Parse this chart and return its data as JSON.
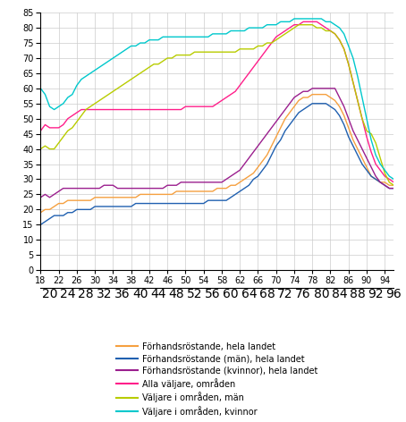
{
  "line_colors": [
    "#f5a040",
    "#2060b0",
    "#9b1f8e",
    "#ff1f8a",
    "#b8cc00",
    "#00c8cc"
  ],
  "line_labels": [
    "FörhandsRöstande, hela landet",
    "FörhandsRöstande (män), hela landet",
    "FörhandsRöstande (kvinnor), hela landet",
    "Alla väljare, områden",
    "Väljare i områden, män",
    "Väljare i områden, kvinnor"
  ],
  "ages": [
    18,
    19,
    20,
    21,
    22,
    23,
    24,
    25,
    26,
    27,
    28,
    29,
    30,
    31,
    32,
    33,
    34,
    35,
    36,
    37,
    38,
    39,
    40,
    41,
    42,
    43,
    44,
    45,
    46,
    47,
    48,
    49,
    50,
    51,
    52,
    53,
    54,
    55,
    56,
    57,
    58,
    59,
    60,
    61,
    62,
    63,
    64,
    65,
    66,
    67,
    68,
    69,
    70,
    71,
    72,
    73,
    74,
    75,
    76,
    77,
    78,
    79,
    80,
    81,
    82,
    83,
    84,
    85,
    86,
    87,
    88,
    89,
    90,
    91,
    92,
    93,
    94,
    95,
    96
  ],
  "forhand_hela": [
    19,
    20,
    20,
    21,
    22,
    22,
    23,
    23,
    23,
    23,
    23,
    23,
    24,
    24,
    24,
    24,
    24,
    24,
    24,
    24,
    24,
    24,
    25,
    25,
    25,
    25,
    25,
    25,
    25,
    25,
    26,
    26,
    26,
    26,
    26,
    26,
    26,
    26,
    26,
    27,
    27,
    27,
    28,
    28,
    29,
    30,
    31,
    32,
    34,
    36,
    38,
    41,
    44,
    47,
    50,
    52,
    54,
    56,
    57,
    57,
    58,
    58,
    58,
    58,
    57,
    56,
    54,
    51,
    47,
    43,
    40,
    37,
    34,
    31,
    30,
    29,
    29,
    28,
    28
  ],
  "forhand_man": [
    15,
    16,
    17,
    18,
    18,
    18,
    19,
    19,
    20,
    20,
    20,
    20,
    21,
    21,
    21,
    21,
    21,
    21,
    21,
    21,
    21,
    22,
    22,
    22,
    22,
    22,
    22,
    22,
    22,
    22,
    22,
    22,
    22,
    22,
    22,
    22,
    22,
    23,
    23,
    23,
    23,
    23,
    24,
    25,
    26,
    27,
    28,
    30,
    31,
    33,
    35,
    38,
    41,
    43,
    46,
    48,
    50,
    52,
    53,
    54,
    55,
    55,
    55,
    55,
    54,
    53,
    51,
    48,
    44,
    41,
    38,
    35,
    33,
    31,
    30,
    29,
    28,
    27,
    27
  ],
  "forhand_kvinna": [
    24,
    25,
    24,
    25,
    26,
    27,
    27,
    27,
    27,
    27,
    27,
    27,
    27,
    27,
    28,
    28,
    28,
    27,
    27,
    27,
    27,
    27,
    27,
    27,
    27,
    27,
    27,
    27,
    28,
    28,
    28,
    29,
    29,
    29,
    29,
    29,
    29,
    29,
    29,
    29,
    29,
    30,
    31,
    32,
    33,
    35,
    37,
    39,
    41,
    43,
    45,
    47,
    49,
    51,
    53,
    55,
    57,
    58,
    59,
    59,
    60,
    60,
    60,
    60,
    60,
    60,
    57,
    54,
    50,
    46,
    43,
    40,
    37,
    34,
    31,
    29,
    28,
    27,
    27
  ],
  "alla_valjare": [
    46,
    48,
    47,
    47,
    47,
    48,
    50,
    51,
    52,
    53,
    53,
    53,
    53,
    53,
    53,
    53,
    53,
    53,
    53,
    53,
    53,
    53,
    53,
    53,
    53,
    53,
    53,
    53,
    53,
    53,
    53,
    53,
    54,
    54,
    54,
    54,
    54,
    54,
    54,
    55,
    56,
    57,
    58,
    59,
    61,
    63,
    65,
    67,
    69,
    71,
    73,
    75,
    77,
    78,
    79,
    80,
    81,
    81,
    82,
    82,
    82,
    82,
    81,
    80,
    79,
    78,
    76,
    73,
    68,
    62,
    56,
    50,
    44,
    39,
    35,
    33,
    31,
    30,
    29
  ],
  "valjare_man": [
    40,
    41,
    40,
    40,
    42,
    44,
    46,
    47,
    49,
    51,
    53,
    54,
    55,
    56,
    57,
    58,
    59,
    60,
    61,
    62,
    63,
    64,
    65,
    66,
    67,
    68,
    68,
    69,
    70,
    70,
    71,
    71,
    71,
    71,
    72,
    72,
    72,
    72,
    72,
    72,
    72,
    72,
    72,
    72,
    73,
    73,
    73,
    73,
    74,
    74,
    75,
    75,
    76,
    77,
    78,
    79,
    80,
    81,
    81,
    81,
    81,
    80,
    80,
    79,
    79,
    78,
    76,
    73,
    68,
    62,
    56,
    50,
    46,
    45,
    42,
    37,
    32,
    29,
    28
  ],
  "valjare_kvinna": [
    60,
    58,
    54,
    53,
    54,
    55,
    57,
    58,
    61,
    63,
    64,
    65,
    66,
    67,
    68,
    69,
    70,
    71,
    72,
    73,
    74,
    74,
    75,
    75,
    76,
    76,
    76,
    77,
    77,
    77,
    77,
    77,
    77,
    77,
    77,
    77,
    77,
    77,
    78,
    78,
    78,
    78,
    79,
    79,
    79,
    79,
    80,
    80,
    80,
    80,
    81,
    81,
    81,
    82,
    82,
    82,
    83,
    83,
    83,
    83,
    83,
    83,
    83,
    82,
    82,
    81,
    80,
    78,
    74,
    70,
    64,
    57,
    50,
    43,
    38,
    35,
    33,
    31,
    30
  ]
}
